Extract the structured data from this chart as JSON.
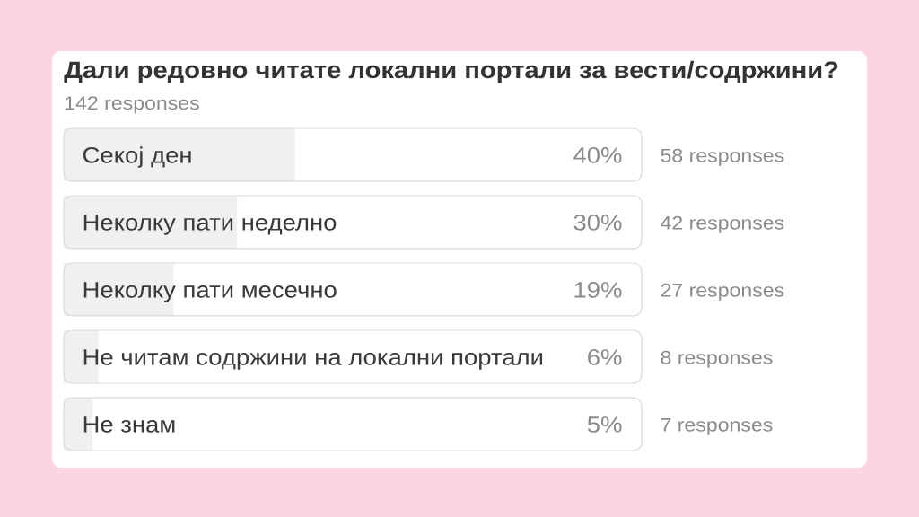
{
  "chart_data": {
    "type": "bar",
    "orientation": "horizontal",
    "title": "Дали редовно читате локални портали за вести/содржини?",
    "subtitle": "142 responses",
    "categories": [
      "Секој ден",
      "Неколку пати неделно",
      "Неколку пати месечно",
      "Не читам содржини на локални портали",
      "Не знам"
    ],
    "values": [
      40,
      30,
      19,
      6,
      5
    ],
    "value_labels": [
      "40%",
      "30%",
      "19%",
      "6%",
      "5%"
    ],
    "color": "#f0f0f0",
    "xlim": [
      0,
      100
    ],
    "annotations": [
      "58 responses",
      "42 responses",
      "27 responses",
      "8 responses",
      "7 responses"
    ]
  }
}
